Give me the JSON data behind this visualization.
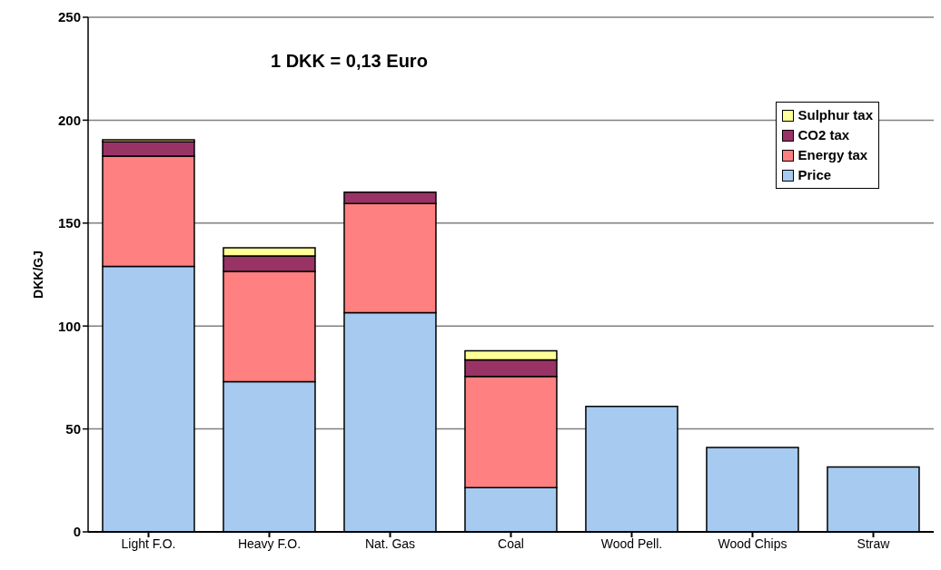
{
  "chart_data": {
    "type": "bar",
    "stacked": true,
    "ylabel": "DKK/GJ",
    "annotations": [
      "1 DKK = 0,13 Euro"
    ],
    "categories": [
      "Light F.O.",
      "Heavy F.O.",
      "Nat. Gas",
      "Coal",
      "Wood Pell.",
      "Wood Chips",
      "Straw"
    ],
    "series": [
      {
        "name": "Price",
        "color": "#a6caf0",
        "values": [
          129,
          73,
          106.5,
          21.5,
          61,
          41,
          31.5
        ]
      },
      {
        "name": "Energy tax",
        "color": "#ff8080",
        "values": [
          53.5,
          53.5,
          53,
          54,
          null,
          null,
          null
        ]
      },
      {
        "name": "CO2 tax",
        "color": "#993366",
        "values": [
          7,
          7.5,
          5.5,
          8,
          null,
          null,
          null
        ]
      },
      {
        "name": "Sulphur tax",
        "color": "#ffff99",
        "values": [
          1,
          4,
          null,
          4.5,
          null,
          null,
          null
        ]
      }
    ],
    "ylim": [
      0,
      250
    ],
    "yticks": [
      0,
      50,
      100,
      150,
      200,
      250
    ],
    "grid": "y",
    "legend": "top right"
  }
}
